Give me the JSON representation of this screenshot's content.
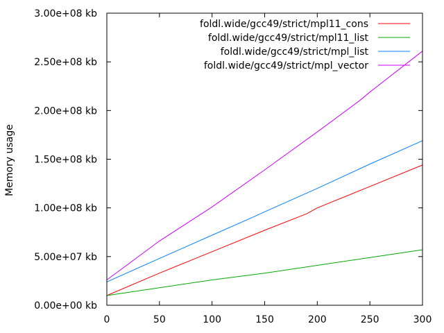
{
  "chart_data": {
    "type": "line",
    "title": "",
    "xlabel": "",
    "ylabel": "Memory usage",
    "xlim": [
      0,
      300
    ],
    "ylim": [
      0,
      300000000
    ],
    "x_ticks": [
      0,
      50,
      100,
      150,
      200,
      250,
      300
    ],
    "x_tick_labels": [
      "0",
      "50",
      "100",
      "150",
      "200",
      "250",
      "300"
    ],
    "y_ticks": [
      0,
      50000000,
      100000000,
      150000000,
      200000000,
      250000000,
      300000000
    ],
    "y_tick_labels": [
      "0.00e+00 kb",
      "5.00e+07 kb",
      "1.00e+08 kb",
      "1.50e+08 kb",
      "2.00e+08 kb",
      "2.50e+08 kb",
      "3.00e+08 kb"
    ],
    "grid": false,
    "legend_position": "top-right",
    "series": [
      {
        "name": "foldl.wide/gcc49/strict/mpl11_cons",
        "color": "#ff0000",
        "x": [
          0,
          50,
          100,
          150,
          190,
          200,
          250,
          300
        ],
        "y": [
          10000000,
          33000000,
          55000000,
          77000000,
          94000000,
          100000000,
          122000000,
          144000000
        ]
      },
      {
        "name": "foldl.wide/gcc49/strict/mpl11_list",
        "color": "#00aa00",
        "x": [
          0,
          50,
          100,
          150,
          200,
          250,
          300
        ],
        "y": [
          10000000,
          18000000,
          26000000,
          33000000,
          41000000,
          49000000,
          57000000
        ]
      },
      {
        "name": "foldl.wide/gcc49/strict/mpl_list",
        "color": "#0080ff",
        "x": [
          0,
          50,
          100,
          140,
          150,
          200,
          250,
          300
        ],
        "y": [
          24000000,
          48000000,
          72000000,
          91000000,
          96000000,
          120000000,
          145000000,
          169000000
        ]
      },
      {
        "name": "foldl.wide/gcc49/strict/mpl_vector",
        "color": "#cc00ff",
        "x": [
          0,
          50,
          100,
          150,
          200,
          240,
          250,
          300
        ],
        "y": [
          26000000,
          66000000,
          101000000,
          139000000,
          178000000,
          210000000,
          219000000,
          261000000
        ]
      }
    ]
  }
}
